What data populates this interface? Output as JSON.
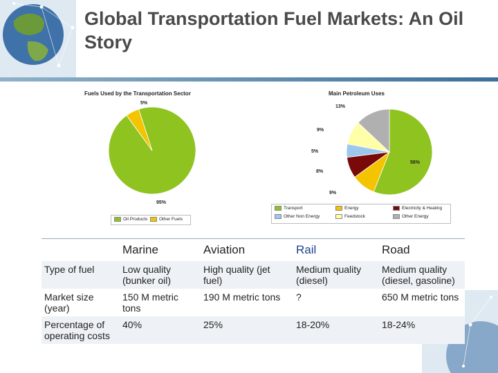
{
  "slide": {
    "title": "Global Transportation Fuel Markets: An Oil Story"
  },
  "chart_data": [
    {
      "type": "pie",
      "title": "Fuels Used by the Transportation Sector",
      "categories": [
        "Oil Products",
        "Other Fuels"
      ],
      "values": [
        95,
        5
      ],
      "labels": [
        "95%",
        "5%"
      ],
      "colors": [
        "#8fc31f",
        "#f5c400"
      ],
      "legend": "bottom"
    },
    {
      "type": "pie",
      "title": "Main Petroleum Uses",
      "categories": [
        "Transport",
        "Energy",
        "Electricity & Heating",
        "Other Non Energy",
        "Feedstock",
        "Other Energy"
      ],
      "values": [
        56,
        9,
        8,
        5,
        9,
        13
      ],
      "labels": [
        "56%",
        "9%",
        "8%",
        "5%",
        "9%",
        "13%"
      ],
      "colors": [
        "#8fc31f",
        "#f5c400",
        "#7a0a0a",
        "#9cc8ee",
        "#ffffa8",
        "#b0b0b0"
      ],
      "legend": "bottom"
    }
  ],
  "table": {
    "headers": [
      "",
      "Marine",
      "Aviation",
      "Rail",
      "Road"
    ],
    "rows": [
      [
        "Type of fuel",
        "Low quality (bunker oil)",
        "High quality (jet fuel)",
        "Medium quality (diesel)",
        "Medium quality (diesel, gasoline)"
      ],
      [
        "Market size (year)",
        "150 M metric tons",
        "190 M metric tons",
        "?",
        "650 M metric tons"
      ],
      [
        "Percentage of operating costs",
        "40%",
        "25%",
        "18-20%",
        "18-24%"
      ]
    ]
  }
}
